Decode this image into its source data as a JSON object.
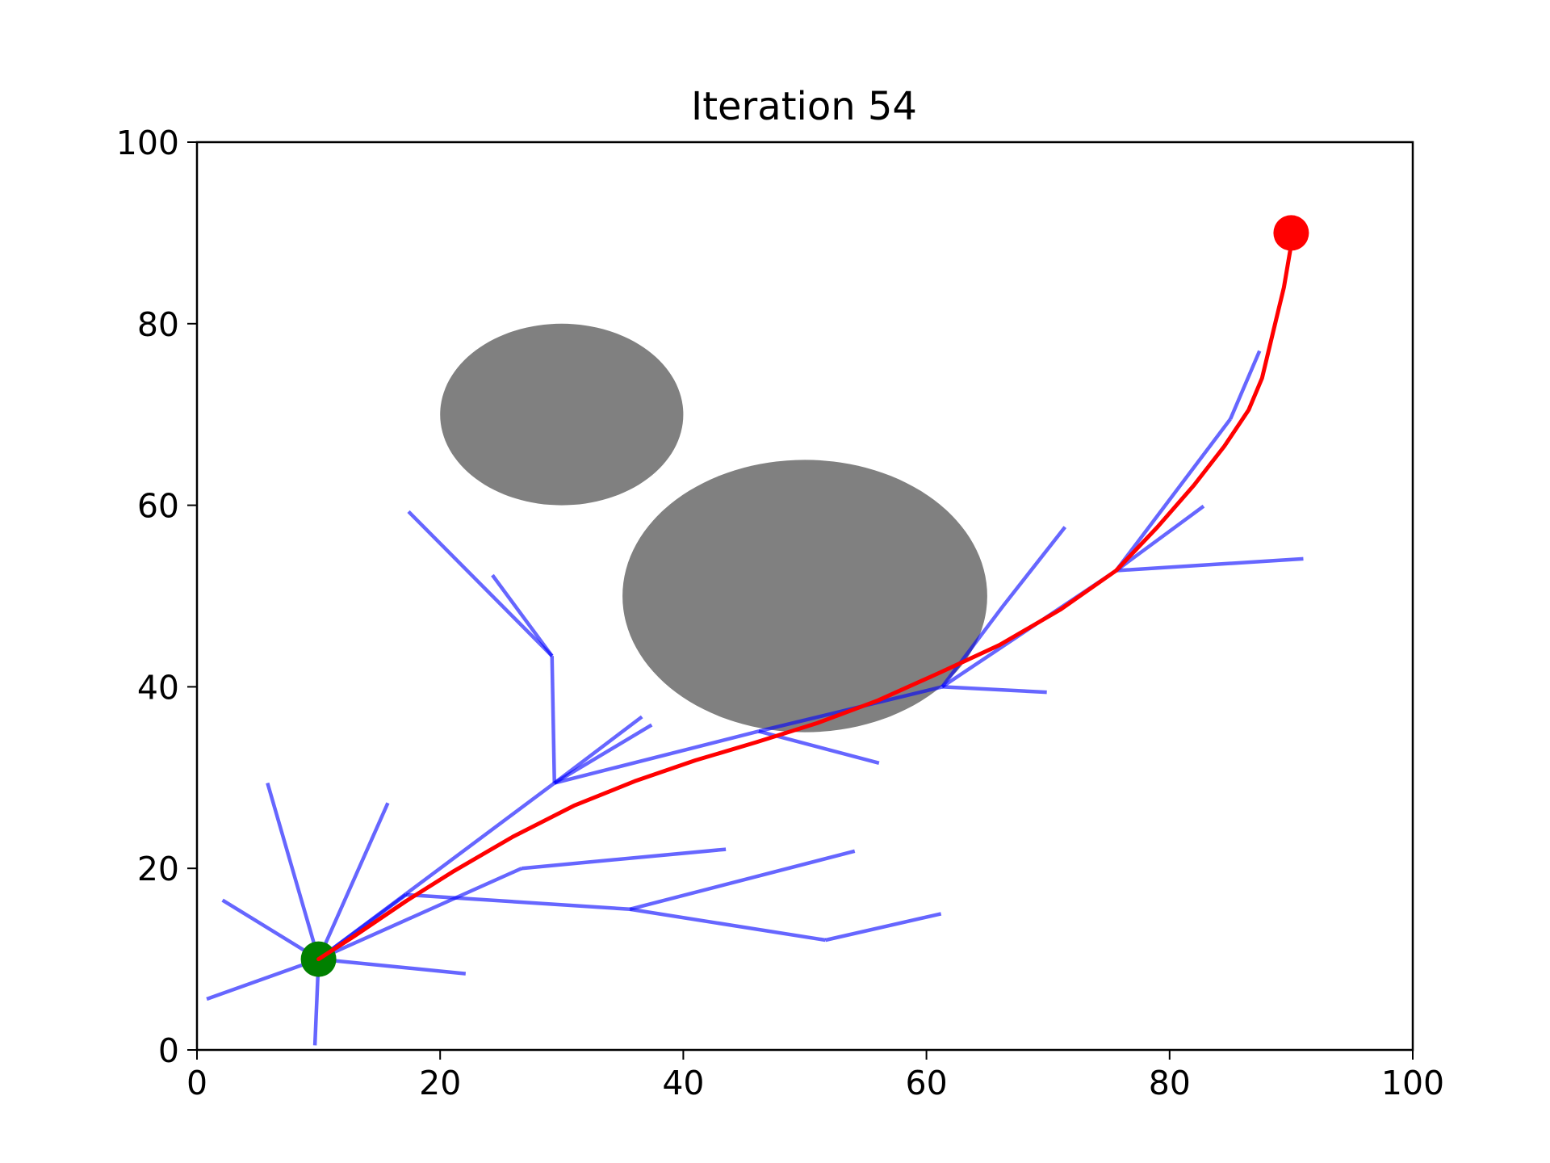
{
  "chart_data": {
    "type": "line",
    "title": "Iteration 54",
    "xlabel": "",
    "ylabel": "",
    "xlim": [
      0,
      100
    ],
    "ylim": [
      0,
      100
    ],
    "x_ticks": [
      0,
      20,
      40,
      60,
      80,
      100
    ],
    "y_ticks": [
      0,
      20,
      40,
      60,
      80,
      100
    ],
    "grid": false,
    "obstacles": [
      {
        "shape": "ellipse",
        "cx": 30,
        "cy": 70,
        "rx": 10,
        "ry": 10,
        "color": "#808080"
      },
      {
        "shape": "ellipse",
        "cx": 50,
        "cy": 50,
        "rx": 15,
        "ry": 15,
        "color": "#808080"
      }
    ],
    "start": {
      "x": 10,
      "y": 10,
      "color": "#008000"
    },
    "goal": {
      "x": 90,
      "y": 90,
      "color": "#ff0000"
    },
    "tree_color": "#0000ff",
    "tree_edges": [
      [
        [
          10,
          10
        ],
        [
          5.8,
          29.4
        ]
      ],
      [
        [
          10,
          10
        ],
        [
          15.7,
          27.2
        ]
      ],
      [
        [
          10,
          10
        ],
        [
          2.1,
          16.5
        ]
      ],
      [
        [
          10,
          10
        ],
        [
          0.8,
          5.6
        ]
      ],
      [
        [
          10,
          10
        ],
        [
          22.1,
          8.4
        ]
      ],
      [
        [
          10,
          10
        ],
        [
          9.7,
          0.5
        ]
      ],
      [
        [
          10,
          10
        ],
        [
          26.7,
          20
        ]
      ],
      [
        [
          26.7,
          20
        ],
        [
          43.5,
          22.1
        ]
      ],
      [
        [
          10,
          10
        ],
        [
          17.2,
          17.1
        ]
      ],
      [
        [
          17.2,
          17.1
        ],
        [
          35.6,
          15.5
        ]
      ],
      [
        [
          35.6,
          15.5
        ],
        [
          54.1,
          21.9
        ]
      ],
      [
        [
          35.6,
          15.5
        ],
        [
          51.7,
          12.1
        ]
      ],
      [
        [
          51.7,
          12.1
        ],
        [
          61.2,
          15
        ]
      ],
      [
        [
          10,
          10
        ],
        [
          29.4,
          29.4
        ]
      ],
      [
        [
          29.4,
          29.4
        ],
        [
          36.6,
          36.7
        ]
      ],
      [
        [
          29.4,
          29.4
        ],
        [
          37.4,
          35.8
        ]
      ],
      [
        [
          29.4,
          29.4
        ],
        [
          29.2,
          43.4
        ]
      ],
      [
        [
          29.2,
          43.4
        ],
        [
          17.4,
          59.3
        ]
      ],
      [
        [
          29.2,
          43.4
        ],
        [
          24.3,
          52.3
        ]
      ],
      [
        [
          29.4,
          29.4
        ],
        [
          46.2,
          35.1
        ]
      ],
      [
        [
          46.2,
          35.1
        ],
        [
          56.1,
          31.6
        ]
      ],
      [
        [
          46.2,
          35.1
        ],
        [
          61.3,
          40
        ]
      ],
      [
        [
          61.3,
          40
        ],
        [
          69.9,
          39.4
        ]
      ],
      [
        [
          61.3,
          40
        ],
        [
          66.3,
          48.9
        ]
      ],
      [
        [
          66.3,
          48.9
        ],
        [
          71.4,
          57.6
        ]
      ],
      [
        [
          61.3,
          40
        ],
        [
          75.6,
          52.8
        ]
      ],
      [
        [
          75.6,
          52.8
        ],
        [
          82.8,
          59.9
        ]
      ],
      [
        [
          75.6,
          52.8
        ],
        [
          91,
          54.1
        ]
      ],
      [
        [
          75.6,
          52.8
        ],
        [
          85,
          69.5
        ]
      ],
      [
        [
          85,
          69.5
        ],
        [
          87.4,
          77
        ]
      ]
    ],
    "path_color": "#ff0000",
    "path": [
      [
        10,
        10
      ],
      [
        13,
        12.6
      ],
      [
        17.2,
        16.4
      ],
      [
        21,
        19.6
      ],
      [
        26,
        23.5
      ],
      [
        31,
        26.9
      ],
      [
        36,
        29.6
      ],
      [
        41,
        31.9
      ],
      [
        46,
        33.9
      ],
      [
        51,
        36
      ],
      [
        56,
        38.5
      ],
      [
        61,
        41.5
      ],
      [
        66,
        44.6
      ],
      [
        71,
        48.5
      ],
      [
        75.6,
        52.8
      ],
      [
        79,
        57.6
      ],
      [
        82,
        62.2
      ],
      [
        84.5,
        66.5
      ],
      [
        86.5,
        70.5
      ],
      [
        87.6,
        74
      ],
      [
        88.5,
        79
      ],
      [
        89.4,
        84
      ],
      [
        90,
        88.7
      ]
    ]
  }
}
